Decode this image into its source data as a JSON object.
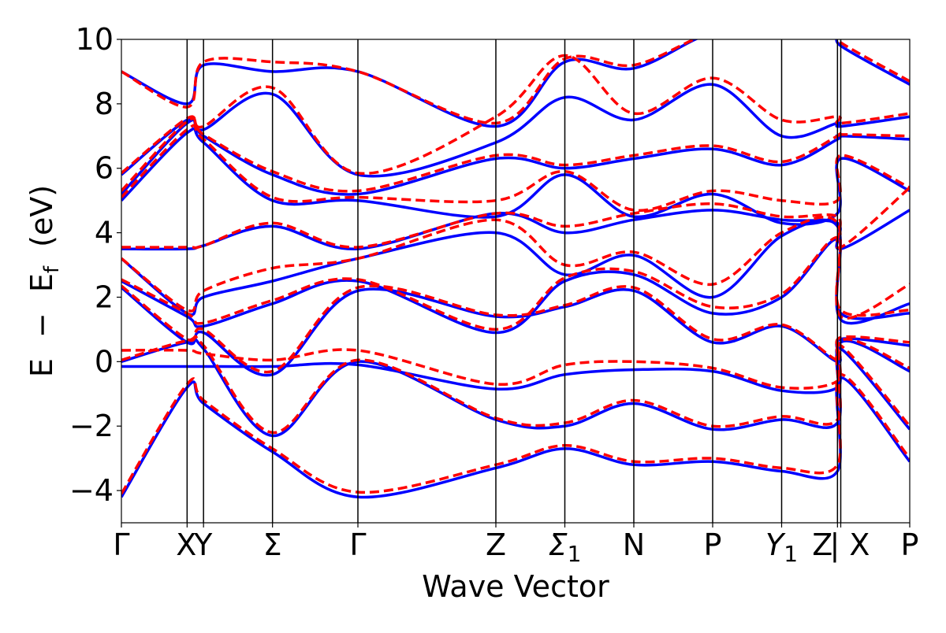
{
  "chart_data": {
    "type": "line",
    "title": "",
    "xlabel": "Wave Vector",
    "ylabel": "E − E_f (eV)",
    "ylabel_parts": {
      "E": "E",
      "minus": "−",
      "Ef": "E",
      "sub": "f",
      "unit": "(eV)"
    },
    "ylim": [
      -5,
      10
    ],
    "yticks": [
      -4,
      -2,
      0,
      2,
      4,
      6,
      8,
      10
    ],
    "ytick_labels": [
      "−4",
      "−2",
      "0",
      "2",
      "4",
      "6",
      "8",
      "10"
    ],
    "xlim": [
      0,
      12
    ],
    "kpoints": [
      {
        "label": "Γ",
        "x": 0
      },
      {
        "label": "X",
        "x": 1.0
      },
      {
        "label": "Y",
        "x": 1.25
      },
      {
        "label": "Σ",
        "x": 2.3
      },
      {
        "label": "Γ",
        "x": 3.6
      },
      {
        "label": "Z",
        "x": 5.7
      },
      {
        "label": "Σ",
        "sub": "1",
        "x": 6.75
      },
      {
        "label": "N",
        "x": 7.8
      },
      {
        "label": "P",
        "x": 9.0
      },
      {
        "label": "Y",
        "sub": "1",
        "x": 10.05
      },
      {
        "label": "Z",
        "x": 10.9
      },
      {
        "label": "| X",
        "x": 10.95
      },
      {
        "label": "P",
        "x": 12.0
      }
    ],
    "series": [
      {
        "style": "solid",
        "color": "#0000ff",
        "bands": [
          {
            "x": [
              0,
              1.0,
              1.25,
              2.3,
              3.6,
              5.7,
              6.75,
              7.8,
              9.0,
              10.05,
              10.9,
              10.95,
              12.0
            ],
            "y": [
              -4.2,
              -0.8,
              -1.3,
              -2.8,
              -4.2,
              -3.3,
              -2.7,
              -3.2,
              -3.1,
              -3.4,
              -3.4,
              -0.5,
              -3.1
            ]
          },
          {
            "x": [
              0,
              1.0,
              1.25,
              2.3,
              3.6,
              5.7,
              6.75,
              7.8,
              9.0,
              10.05,
              10.9,
              10.95,
              12.0
            ],
            "y": [
              -0.15,
              -0.15,
              -0.15,
              -0.15,
              -0.1,
              -0.85,
              -0.4,
              -0.25,
              -0.3,
              -0.9,
              -0.8,
              0.4,
              -2.1
            ]
          },
          {
            "x": [
              0,
              1.0,
              1.25,
              2.3,
              3.6,
              5.7,
              6.75,
              7.8,
              9.0,
              10.05,
              10.9,
              10.95,
              12.0
            ],
            "y": [
              0.0,
              0.6,
              0.4,
              -2.3,
              0.0,
              -1.8,
              -2.0,
              -1.3,
              -2.1,
              -1.8,
              -1.9,
              0.6,
              -0.3
            ]
          },
          {
            "x": [
              0,
              1.0,
              1.25,
              2.3,
              3.6,
              5.7,
              6.75,
              7.8,
              9.0,
              10.05,
              10.9,
              10.95,
              12.0
            ],
            "y": [
              2.3,
              0.6,
              0.9,
              -0.4,
              2.2,
              1.4,
              1.7,
              2.2,
              0.6,
              1.1,
              0.0,
              0.7,
              0.5
            ]
          },
          {
            "x": [
              0,
              1.0,
              1.25,
              2.3,
              3.6,
              5.7,
              6.75,
              7.8,
              9.0,
              10.05,
              10.9,
              10.95,
              12.0
            ],
            "y": [
              2.5,
              1.4,
              1.1,
              1.8,
              2.5,
              0.9,
              2.5,
              2.7,
              1.5,
              2.0,
              3.8,
              1.5,
              1.5
            ]
          },
          {
            "x": [
              0,
              1.0,
              1.25,
              2.3,
              3.6,
              5.7,
              6.75,
              7.8,
              9.0,
              10.05,
              10.9,
              10.95,
              12.0
            ],
            "y": [
              3.2,
              1.5,
              2.0,
              2.5,
              3.2,
              4.0,
              2.7,
              3.3,
              2.0,
              3.9,
              4.2,
              1.3,
              1.8
            ]
          },
          {
            "x": [
              0,
              1.0,
              1.25,
              2.3,
              3.6,
              5.7,
              6.75,
              7.8,
              9.0,
              10.05,
              10.9,
              10.95,
              12.0
            ],
            "y": [
              3.5,
              3.5,
              3.6,
              4.2,
              3.5,
              4.6,
              4.0,
              4.4,
              4.7,
              4.4,
              4.3,
              3.5,
              4.7
            ]
          },
          {
            "x": [
              0,
              1.0,
              1.25,
              2.3,
              3.6,
              5.7,
              6.75,
              7.8,
              9.0,
              10.05,
              10.9,
              10.95,
              12.0
            ],
            "y": [
              5.0,
              7.1,
              6.8,
              5.0,
              5.0,
              4.5,
              5.8,
              4.5,
              5.2,
              4.3,
              4.6,
              6.3,
              5.3
            ]
          },
          {
            "x": [
              0,
              1.0,
              1.25,
              2.3,
              3.6,
              5.7,
              6.75,
              7.8,
              9.0,
              10.05,
              10.9,
              10.95,
              12.0
            ],
            "y": [
              5.2,
              7.4,
              7.0,
              5.8,
              5.2,
              6.3,
              6.0,
              6.3,
              6.6,
              6.1,
              6.9,
              7.0,
              6.9
            ]
          },
          {
            "x": [
              0,
              1.0,
              1.25,
              2.3,
              3.6,
              5.7,
              6.75,
              7.8,
              9.0,
              10.05,
              10.9,
              10.95,
              12.0
            ],
            "y": [
              5.8,
              7.5,
              7.2,
              8.3,
              5.8,
              6.8,
              8.2,
              7.5,
              8.6,
              7.0,
              7.4,
              7.3,
              7.6
            ]
          },
          {
            "x": [
              0,
              1.0,
              1.25,
              2.3,
              3.6,
              5.7,
              6.75,
              7.8,
              9.0,
              10.05,
              10.9,
              10.95,
              12.0
            ],
            "y": [
              9.0,
              8.0,
              9.2,
              9.0,
              9.0,
              7.3,
              9.3,
              9.1,
              10.2,
              10.2,
              10.2,
              9.8,
              8.6
            ]
          }
        ]
      },
      {
        "style": "dashed",
        "color": "#ff0000",
        "bands": [
          {
            "x": [
              0,
              1.0,
              1.25,
              2.3,
              3.6,
              5.7,
              6.75,
              7.8,
              9.0,
              10.05,
              10.9,
              10.95,
              12.0
            ],
            "y": [
              -4.1,
              -0.7,
              -1.2,
              -2.7,
              -4.05,
              -3.2,
              -2.6,
              -3.1,
              -3.0,
              -3.3,
              -3.2,
              -0.4,
              -3.0
            ]
          },
          {
            "x": [
              0,
              1.0,
              1.25,
              2.3,
              3.6,
              5.7,
              6.75,
              7.8,
              9.0,
              10.05,
              10.9,
              10.95,
              12.0
            ],
            "y": [
              0.35,
              0.35,
              0.25,
              0.05,
              0.35,
              -0.7,
              -0.1,
              0.0,
              -0.2,
              -0.8,
              -0.6,
              0.5,
              -2.0
            ]
          },
          {
            "x": [
              0,
              1.0,
              1.25,
              2.3,
              3.6,
              5.7,
              6.75,
              7.8,
              9.0,
              10.05,
              10.9,
              10.95,
              12.0
            ],
            "y": [
              0.05,
              0.65,
              0.5,
              -2.2,
              0.05,
              -1.75,
              -1.9,
              -1.2,
              -2.0,
              -1.7,
              -1.8,
              0.65,
              -0.2
            ]
          },
          {
            "x": [
              0,
              1.0,
              1.25,
              2.3,
              3.6,
              5.7,
              6.75,
              7.8,
              9.0,
              10.05,
              10.9,
              10.95,
              12.0
            ],
            "y": [
              2.35,
              0.7,
              1.0,
              -0.3,
              2.3,
              1.45,
              1.75,
              2.3,
              0.7,
              1.15,
              0.05,
              0.75,
              0.6
            ]
          },
          {
            "x": [
              0,
              1.0,
              1.25,
              2.3,
              3.6,
              5.7,
              6.75,
              7.8,
              9.0,
              10.05,
              10.9,
              10.95,
              12.0
            ],
            "y": [
              2.55,
              1.5,
              1.2,
              1.9,
              2.55,
              1.0,
              2.6,
              2.8,
              1.7,
              2.1,
              3.85,
              1.6,
              1.6
            ]
          },
          {
            "x": [
              0,
              1.0,
              1.25,
              2.3,
              3.6,
              5.7,
              6.75,
              7.8,
              9.0,
              10.05,
              10.9,
              10.95,
              12.0
            ],
            "y": [
              3.2,
              1.6,
              2.2,
              2.9,
              3.2,
              4.4,
              3.0,
              3.4,
              2.4,
              4.0,
              4.3,
              1.4,
              2.4
            ]
          },
          {
            "x": [
              0,
              1.0,
              1.25,
              2.3,
              3.6,
              5.7,
              6.75,
              7.8,
              9.0,
              10.05,
              10.9,
              10.95,
              12.0
            ],
            "y": [
              3.55,
              3.55,
              3.6,
              4.3,
              3.55,
              4.6,
              4.2,
              4.6,
              4.9,
              4.5,
              4.5,
              3.55,
              5.4
            ]
          },
          {
            "x": [
              0,
              1.0,
              1.25,
              2.3,
              3.6,
              5.7,
              6.75,
              7.8,
              9.0,
              10.05,
              10.9,
              10.95,
              12.0
            ],
            "y": [
              5.1,
              7.2,
              6.9,
              5.1,
              5.1,
              5.0,
              5.9,
              4.7,
              5.3,
              5.0,
              5.0,
              6.4,
              5.4
            ]
          },
          {
            "x": [
              0,
              1.0,
              1.25,
              2.3,
              3.6,
              5.7,
              6.75,
              7.8,
              9.0,
              10.05,
              10.9,
              10.95,
              12.0
            ],
            "y": [
              5.3,
              7.45,
              7.05,
              5.9,
              5.3,
              6.4,
              6.1,
              6.4,
              6.7,
              6.2,
              7.0,
              7.05,
              7.0
            ]
          },
          {
            "x": [
              0,
              1.0,
              1.25,
              2.3,
              3.6,
              5.7,
              6.75,
              7.8,
              9.0,
              10.05,
              10.9,
              10.95,
              12.0
            ],
            "y": [
              5.85,
              7.55,
              7.3,
              8.5,
              5.85,
              7.6,
              9.5,
              7.7,
              8.8,
              7.5,
              7.6,
              7.4,
              7.7
            ]
          },
          {
            "x": [
              0,
              1.0,
              1.25,
              2.3,
              3.6,
              5.7,
              6.75,
              7.8,
              9.0,
              10.05,
              10.9,
              10.95,
              12.0
            ],
            "y": [
              9.0,
              7.9,
              9.3,
              9.3,
              9.0,
              7.4,
              9.4,
              9.2,
              10.2,
              10.2,
              10.2,
              9.9,
              8.7
            ]
          }
        ]
      }
    ]
  }
}
